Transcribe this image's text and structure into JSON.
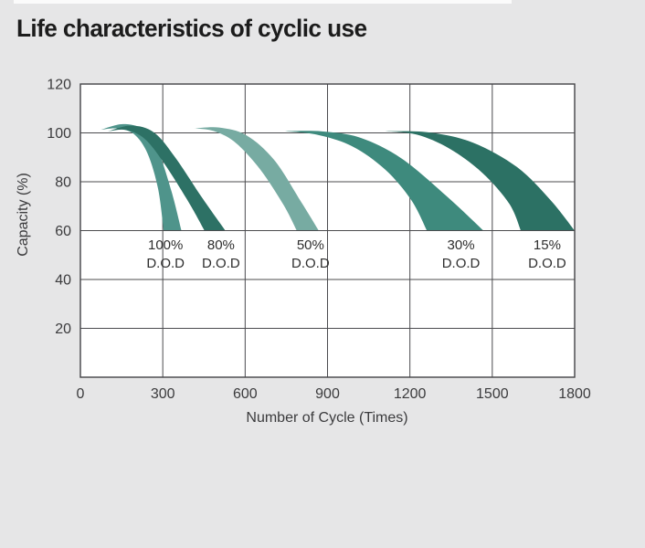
{
  "page": {
    "title": "Life characteristics of cyclic use",
    "background_color": "#e6e6e7"
  },
  "chart_data": {
    "type": "area",
    "title": "Life characteristics of cyclic use",
    "xlabel": "Number of Cycle (Times)",
    "ylabel": "Capacity (%)",
    "xlim": [
      0,
      1800
    ],
    "ylim": [
      0,
      120
    ],
    "x_ticks": [
      0,
      300,
      600,
      900,
      1200,
      1500,
      1800
    ],
    "y_ticks": [
      120,
      100,
      80,
      60,
      40,
      20
    ],
    "grid": true,
    "legend_position": "none",
    "plot_bg": "#ffffff",
    "grid_color": "#4b4b4e",
    "frame_color": "#434346",
    "text_color": "#3b3b3d",
    "series": [
      {
        "name": "100% D.O.D",
        "label_line1": "100%",
        "label_line2": "D.O.D",
        "label_x_cycles": 310,
        "color": "#4f948b",
        "approx_cycles_at_60pct_capacity": 335,
        "top_edge": [
          [
            75,
            101.3
          ],
          [
            155,
            103.6
          ],
          [
            230,
            101.3
          ],
          [
            283,
            92.5
          ],
          [
            332,
            76
          ],
          [
            368,
            60
          ]
        ],
        "bottom_edge": [
          [
            75,
            101.3
          ],
          [
            135,
            101.8
          ],
          [
            195,
            99.5
          ],
          [
            245,
            91.5
          ],
          [
            283,
            77
          ],
          [
            303,
            60
          ]
        ]
      },
      {
        "name": "80% D.O.D",
        "label_line1": "80%",
        "label_line2": "D.O.D",
        "label_x_cycles": 512,
        "color": "#2d7165",
        "approx_cycles_at_60pct_capacity": 490,
        "top_edge": [
          [
            100,
            100.6
          ],
          [
            185,
            103.0
          ],
          [
            268,
            100.2
          ],
          [
            345,
            90
          ],
          [
            440,
            74
          ],
          [
            528,
            60
          ]
        ],
        "bottom_edge": [
          [
            100,
            100.6
          ],
          [
            165,
            101.2
          ],
          [
            235,
            97.5
          ],
          [
            305,
            87.5
          ],
          [
            395,
            71.5
          ],
          [
            452,
            60
          ]
        ]
      },
      {
        "name": "50% D.O.D",
        "label_line1": "50%",
        "label_line2": "D.O.D",
        "label_x_cycles": 838,
        "color": "#77aba2",
        "approx_cycles_at_60pct_capacity": 830,
        "top_edge": [
          [
            415,
            101.8
          ],
          [
            505,
            102.2
          ],
          [
            605,
            99
          ],
          [
            705,
            89
          ],
          [
            800,
            72.5
          ],
          [
            868,
            60
          ]
        ],
        "bottom_edge": [
          [
            415,
            101.8
          ],
          [
            485,
            100.8
          ],
          [
            565,
            96
          ],
          [
            655,
            85
          ],
          [
            740,
            70.5
          ],
          [
            788,
            60
          ]
        ]
      },
      {
        "name": "30% D.O.D",
        "label_line1": "30%",
        "label_line2": "D.O.D",
        "label_x_cycles": 1386,
        "color": "#3e8a7d",
        "approx_cycles_at_60pct_capacity": 1365,
        "top_edge": [
          [
            745,
            100.7
          ],
          [
            880,
            100.6
          ],
          [
            1020,
            98
          ],
          [
            1170,
            89.5
          ],
          [
            1330,
            74.5
          ],
          [
            1468,
            60
          ]
        ],
        "bottom_edge": [
          [
            745,
            100.7
          ],
          [
            860,
            99.3
          ],
          [
            990,
            94.5
          ],
          [
            1110,
            85
          ],
          [
            1205,
            72.5
          ],
          [
            1262,
            60
          ]
        ]
      },
      {
        "name": "15% D.O.D",
        "label_line1": "15%",
        "label_line2": "D.O.D",
        "label_x_cycles": 1700,
        "color": "#2c7164",
        "approx_cycles_at_60pct_capacity": 1700,
        "top_edge": [
          [
            1110,
            100.7
          ],
          [
            1270,
            100.2
          ],
          [
            1430,
            96
          ],
          [
            1590,
            86
          ],
          [
            1712,
            72.5
          ],
          [
            1800,
            60
          ]
        ],
        "bottom_edge": [
          [
            1110,
            100.7
          ],
          [
            1225,
            99.3
          ],
          [
            1345,
            93.5
          ],
          [
            1465,
            83.5
          ],
          [
            1562,
            71
          ],
          [
            1604,
            60
          ]
        ]
      }
    ],
    "dod_label_row_capacities": [
      54.2,
      46.8
    ]
  }
}
